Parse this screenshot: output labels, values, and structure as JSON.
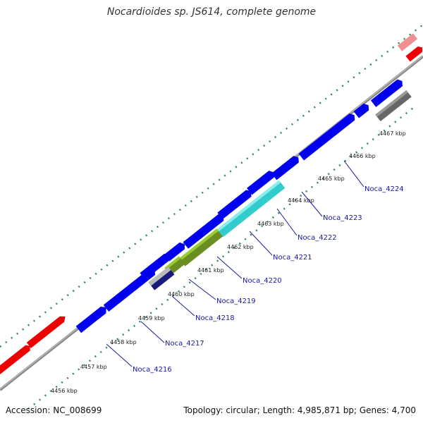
{
  "title": "Nocardioides sp. JS614, complete genome",
  "footer": {
    "accession": "Accession: NC_008699",
    "topology": "Topology: circular; Length: 4,985,871 bp; Genes: 4,700"
  },
  "colors": {
    "backbone": "#8a8a8a",
    "gene_forward": "#0000ee",
    "gene_reverse": "#0000ee",
    "selected_gene": "#ee0000",
    "faded_gene": "#f09090",
    "rna_cyan": "#33cccc",
    "olive": "#6b8e23",
    "gray_feature": "#666666",
    "tick_green": "#2e8b57",
    "label_blue": "#1a1aa0"
  },
  "scale_labels": [
    "4456 kbp",
    "4457 kbp",
    "4458 kbp",
    "4459 kbp",
    "4460 kbp",
    "4461 kbp",
    "4462 kbp",
    "4463 kbp",
    "4464 kbp",
    "4465 kbp",
    "4466 kbp",
    "4467 kbp"
  ],
  "gene_labels": [
    "Noca_4216",
    "Noca_4217",
    "Noca_4218",
    "Noca_4219",
    "Noca_4220",
    "Noca_4221",
    "Noca_4222",
    "Noca_4223",
    "Noca_4224"
  ]
}
